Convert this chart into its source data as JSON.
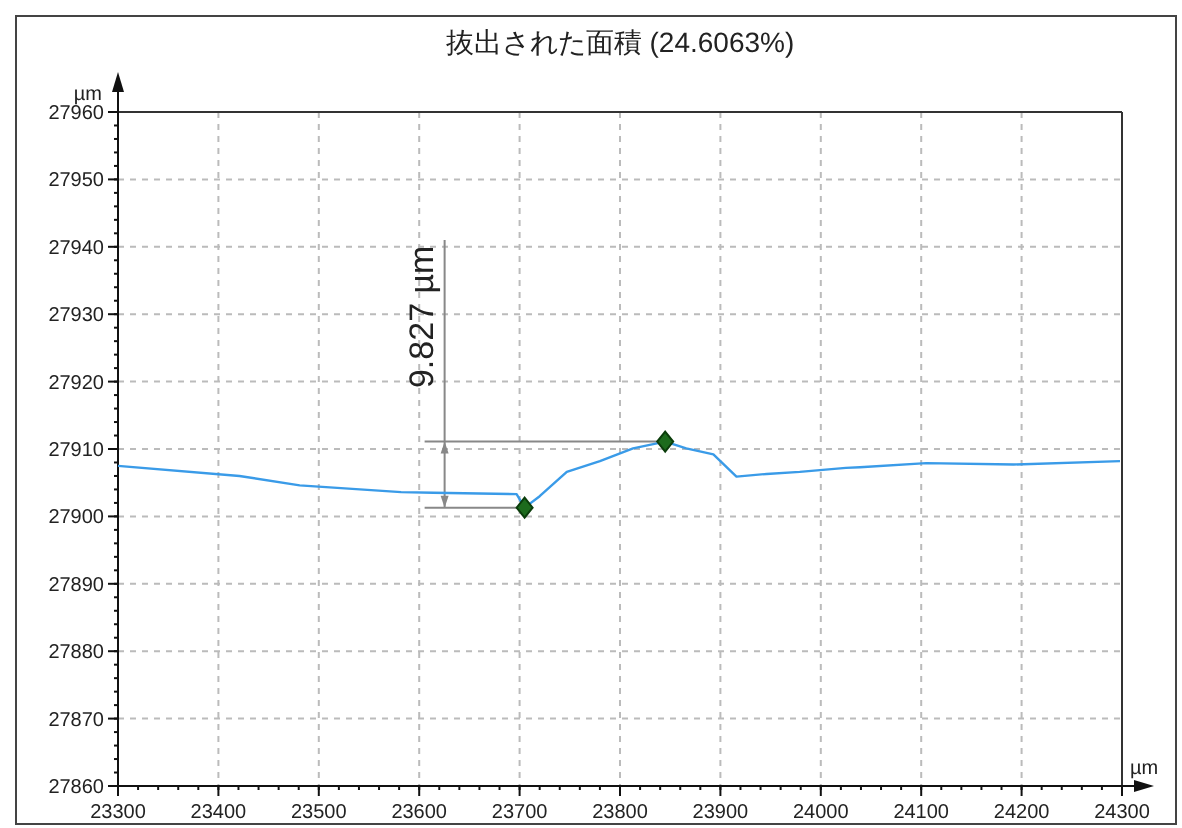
{
  "chart_data": {
    "type": "line",
    "title": "抜出された面積 (24.6063%)",
    "xlabel": "µm",
    "ylabel": "µm",
    "xlim": [
      23300,
      24300
    ],
    "xticks": [
      23300,
      23400,
      23500,
      23600,
      23700,
      23800,
      23900,
      24000,
      24100,
      24200,
      24300
    ],
    "ylim": [
      27860,
      27960
    ],
    "yticks": [
      27860,
      27870,
      27880,
      27890,
      27900,
      27910,
      27920,
      27930,
      27940,
      27950,
      27960
    ],
    "grid": true,
    "series": [
      {
        "color": "#3a9be8",
        "marker": "none",
        "x": [
          23300,
          23421,
          23481,
          23582,
          23614,
          23697,
          23705,
          23720,
          23747,
          23780,
          23813,
          23845,
          23866,
          23893,
          23916,
          23946,
          23979,
          24025,
          24039,
          24105,
          24192,
          24298
        ],
        "values": [
          27907.5,
          27906,
          27904.6,
          27903.6,
          27903.5,
          27903.3,
          27901.3,
          27903,
          27906.6,
          27908.2,
          27910.1,
          27911.1,
          27910.1,
          27909.2,
          27905.9,
          27906.3,
          27906.6,
          27907.2,
          27907.3,
          27907.9,
          27907.7,
          27908.2
        ]
      },
      {
        "type": "scatter",
        "color": "#1d6b1d",
        "marker": "diamond",
        "x": [
          23705,
          23845
        ],
        "values": [
          27901.3,
          27911.1
        ]
      }
    ],
    "annotations": [
      "9.827 µm"
    ]
  }
}
